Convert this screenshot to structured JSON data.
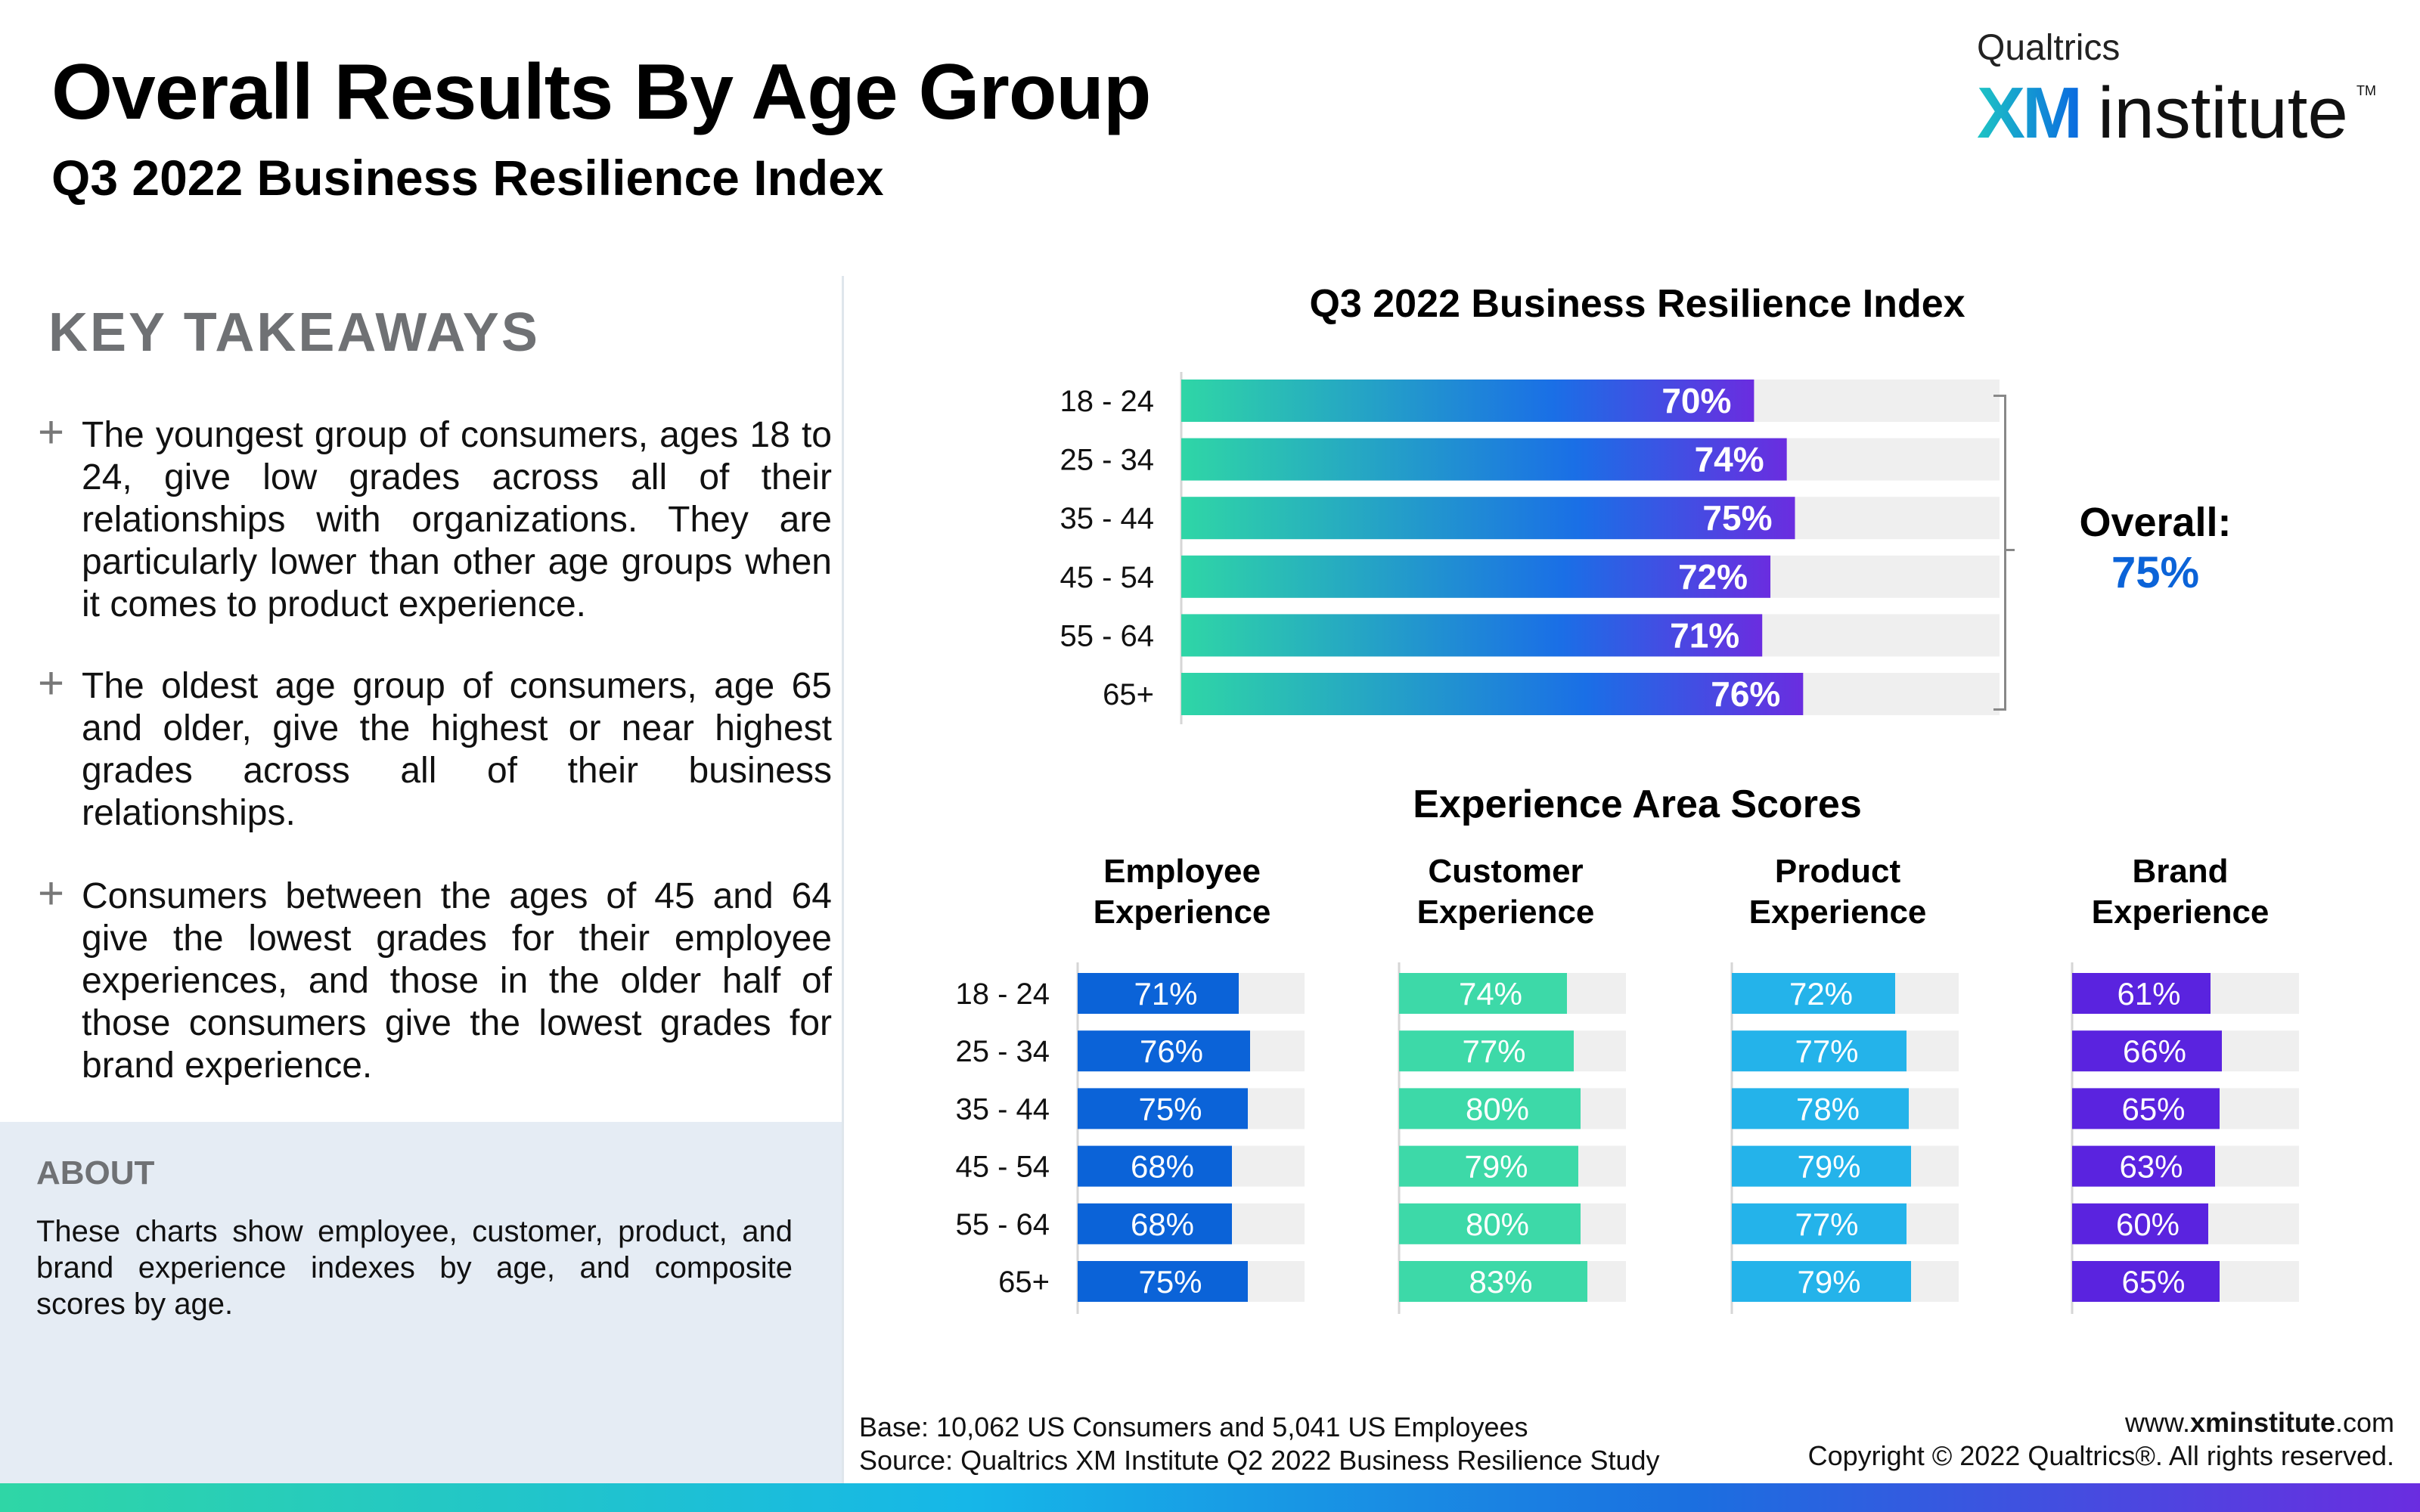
{
  "header": {
    "title": "Overall Results By Age Group",
    "subtitle": "Q3 2022 Business Resilience Index"
  },
  "logo": {
    "small": "Qualtrics",
    "xm": "XM",
    "institute": "institute",
    "tm": "TM"
  },
  "takeaways": {
    "heading": "KEY TAKEAWAYS",
    "plus": "+",
    "items": [
      "The youngest group of consumers, ages 18 to 24, give low grades across all of their relationships with organizations. They are particularly lower than other age groups when it comes to product experience.",
      "The oldest age group of consumers, age 65 and older, give the highest or near highest grades across all of their business relationships.",
      "Consumers between the ages of 45 and 64 give the lowest grades for their employee experiences, and those in the older half of those consumers give the lowest grades for brand experience."
    ]
  },
  "about": {
    "heading": "ABOUT",
    "text": "These charts show employee, customer, product, and brand experience indexes by age, and composite scores by age."
  },
  "overall": {
    "label": "Overall:",
    "value": "75%"
  },
  "chart_data": [
    {
      "type": "bar",
      "orientation": "horizontal",
      "title": "Q3 2022 Business Resilience Index",
      "categories": [
        "18 - 24",
        "25 - 34",
        "35 - 44",
        "45 - 54",
        "55 - 64",
        "65+"
      ],
      "values": [
        70,
        74,
        75,
        72,
        71,
        76
      ],
      "value_suffix": "%",
      "xlim": [
        0,
        100
      ],
      "colors": [
        "#2fd6a6",
        "#1a7ae6",
        "#6a2de0"
      ]
    },
    {
      "type": "bar",
      "orientation": "horizontal",
      "title": "Experience Area Scores",
      "categories": [
        "18 - 24",
        "25 - 34",
        "35 - 44",
        "45 - 54",
        "55 - 64",
        "65+"
      ],
      "xlim": [
        0,
        100
      ],
      "value_suffix": "%",
      "series": [
        {
          "name": "Employee Experience",
          "values": [
            71,
            76,
            75,
            68,
            68,
            75
          ],
          "color": "#0b63d8"
        },
        {
          "name": "Customer Experience",
          "values": [
            74,
            77,
            80,
            79,
            80,
            83
          ],
          "color": "#3dd9a8"
        },
        {
          "name": "Product Experience",
          "values": [
            72,
            77,
            78,
            79,
            77,
            79
          ],
          "color": "#24b3ea"
        },
        {
          "name": "Brand Experience",
          "values": [
            61,
            66,
            65,
            63,
            60,
            65
          ],
          "color": "#5a23df"
        }
      ]
    }
  ],
  "series_headers": [
    {
      "line1": "Employee",
      "line2": "Experience"
    },
    {
      "line1": "Customer",
      "line2": "Experience"
    },
    {
      "line1": "Product",
      "line2": "Experience"
    },
    {
      "line1": "Brand",
      "line2": "Experience"
    }
  ],
  "footer": {
    "base": "Base: 10,062 US Consumers and 5,041 US Employees",
    "source": "Source: Qualtrics XM Institute Q2 2022 Business Resilience Study",
    "url_prefix": "www.",
    "url_bold": "xminstitute",
    "url_suffix": ".com",
    "copyright": "Copyright © 2022 Qualtrics®. All rights reserved."
  }
}
